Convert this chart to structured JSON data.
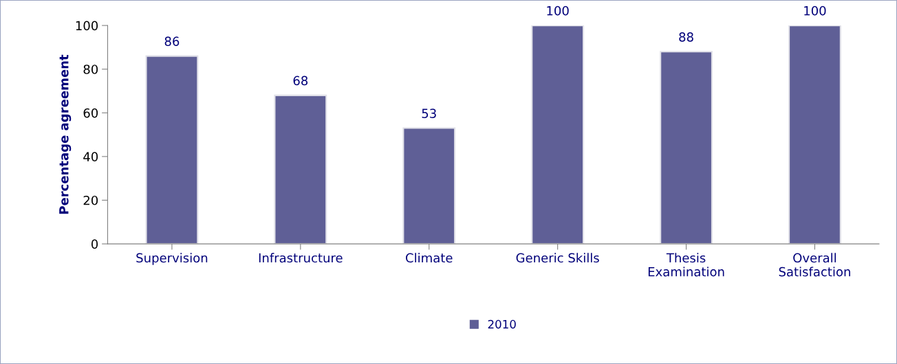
{
  "chart_data": {
    "type": "bar",
    "ylabel": "Percentage agreement",
    "categories": [
      "Supervision",
      "Infrastructure",
      "Climate",
      "Generic Skills",
      "Thesis\nExamination",
      "Overall\nSatisfaction"
    ],
    "series": [
      {
        "name": "2010",
        "color": "#5f5f96",
        "values": [
          86,
          68,
          53,
          100,
          88,
          100
        ]
      }
    ],
    "ylim": [
      0,
      100
    ],
    "yticks": [
      0,
      20,
      40,
      60,
      80,
      100
    ],
    "grid": false,
    "legend": "bottom",
    "data_labels": true
  }
}
